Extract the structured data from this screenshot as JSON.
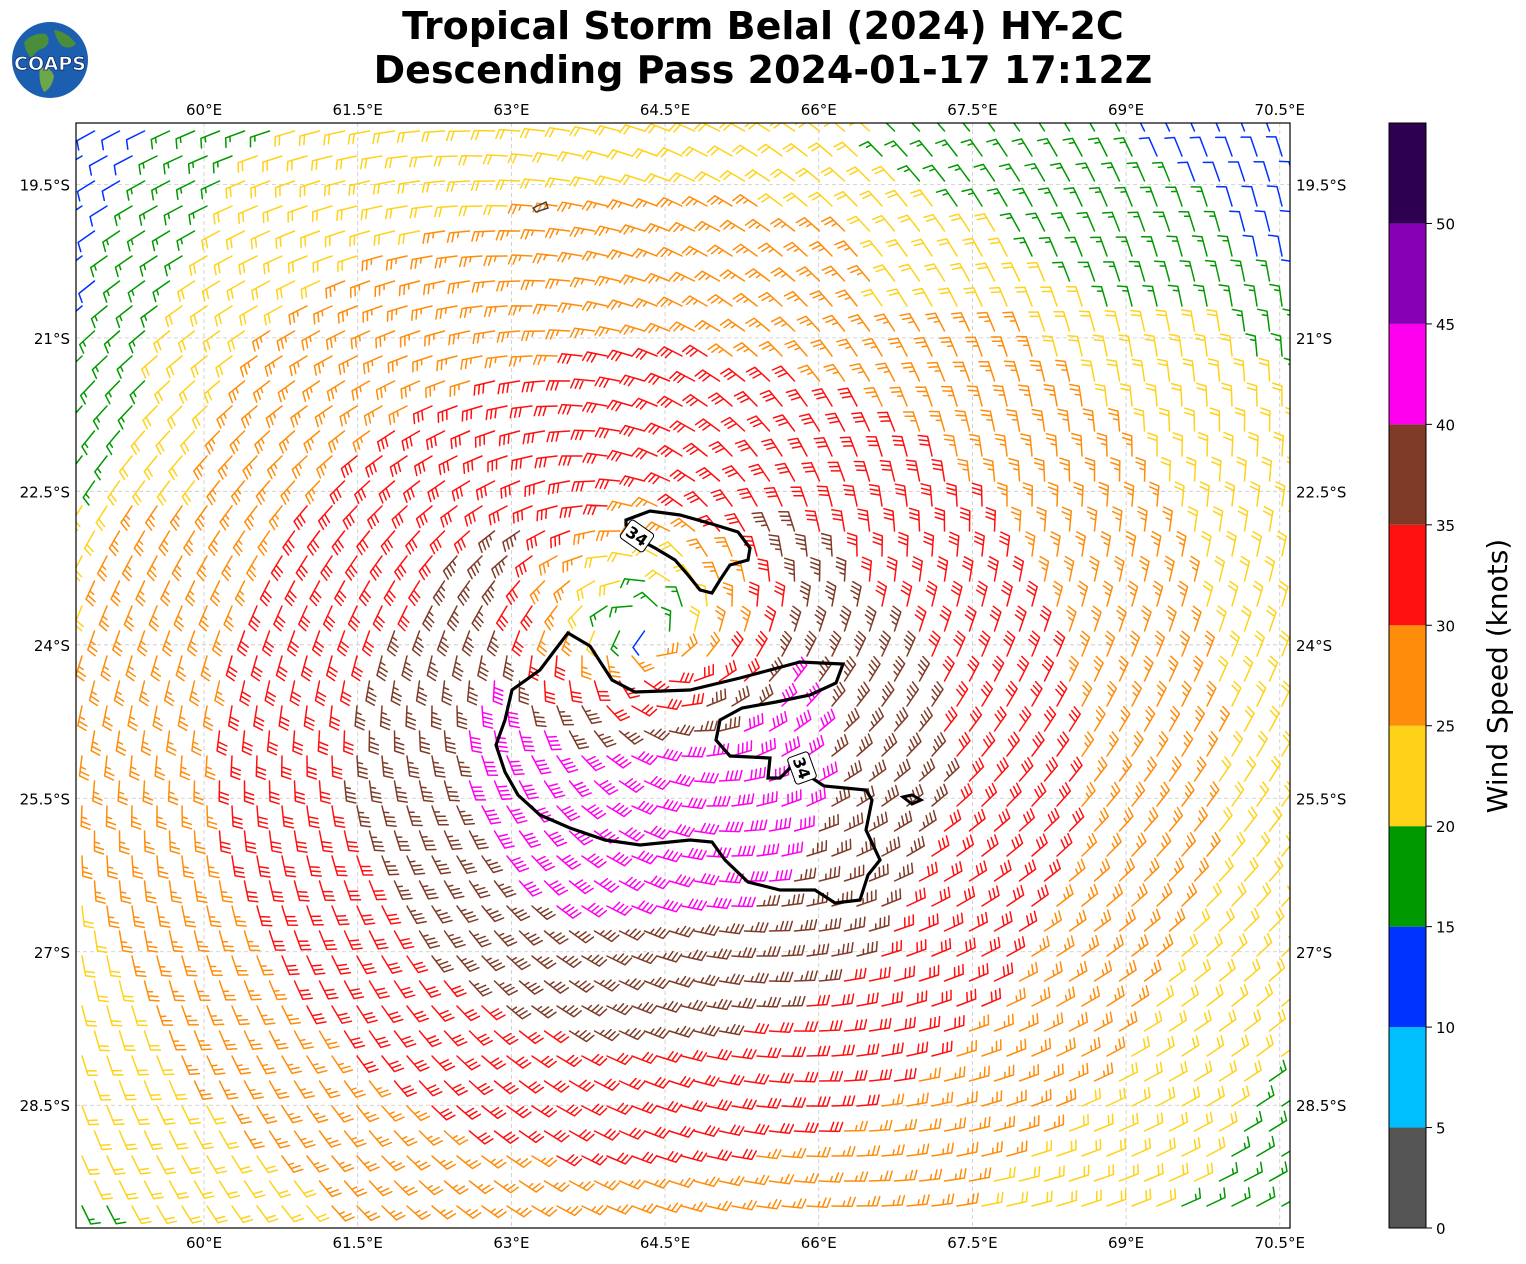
{
  "title": {
    "line1": "Tropical Storm Belal (2024) HY-2C",
    "line2": "Descending Pass 2024-01-17 17:12Z"
  },
  "logo": {
    "text": "COAPS",
    "icon": "globe-icon"
  },
  "map": {
    "lon_range": [
      58.75,
      70.6
    ],
    "lat_range": [
      -29.7,
      -18.9
    ],
    "lon_ticks": [
      60,
      61.5,
      63,
      64.5,
      66,
      67.5,
      69,
      70.5
    ],
    "lon_tick_labels": [
      "60°E",
      "61.5°E",
      "63°E",
      "64.5°E",
      "66°E",
      "67.5°E",
      "69°E",
      "70.5°E"
    ],
    "lat_ticks": [
      -19.5,
      -21,
      -22.5,
      -24,
      -25.5,
      -27,
      -28.5
    ],
    "lat_tick_labels": [
      "19.5°S",
      "21°S",
      "22.5°S",
      "24°S",
      "25.5°S",
      "27°S",
      "28.5°S"
    ],
    "grid": true,
    "storm_center": {
      "lon": 64.3,
      "lat": -23.9
    },
    "contour": {
      "label": "34",
      "level_knots": 34
    }
  },
  "colorbar": {
    "label": "Wind Speed (knots)",
    "ticks": [
      "0",
      "5",
      "10",
      "15",
      "20",
      "25",
      "30",
      "35",
      "40",
      "45",
      "50"
    ],
    "bins": [
      {
        "min": 0,
        "max": 5,
        "color": "#555555"
      },
      {
        "min": 5,
        "max": 10,
        "color": "#00bfff"
      },
      {
        "min": 10,
        "max": 15,
        "color": "#0033ff"
      },
      {
        "min": 15,
        "max": 20,
        "color": "#009900"
      },
      {
        "min": 20,
        "max": 25,
        "color": "#ffd21a"
      },
      {
        "min": 25,
        "max": 30,
        "color": "#ff8c0a"
      },
      {
        "min": 30,
        "max": 35,
        "color": "#ff1010"
      },
      {
        "min": 35,
        "max": 40,
        "color": "#7f3b28"
      },
      {
        "min": 40,
        "max": 45,
        "color": "#ff00ee"
      },
      {
        "min": 45,
        "max": 50,
        "color": "#8800b3"
      },
      {
        "min": 50,
        "max": 55,
        "color": "#2e0052"
      }
    ]
  }
}
